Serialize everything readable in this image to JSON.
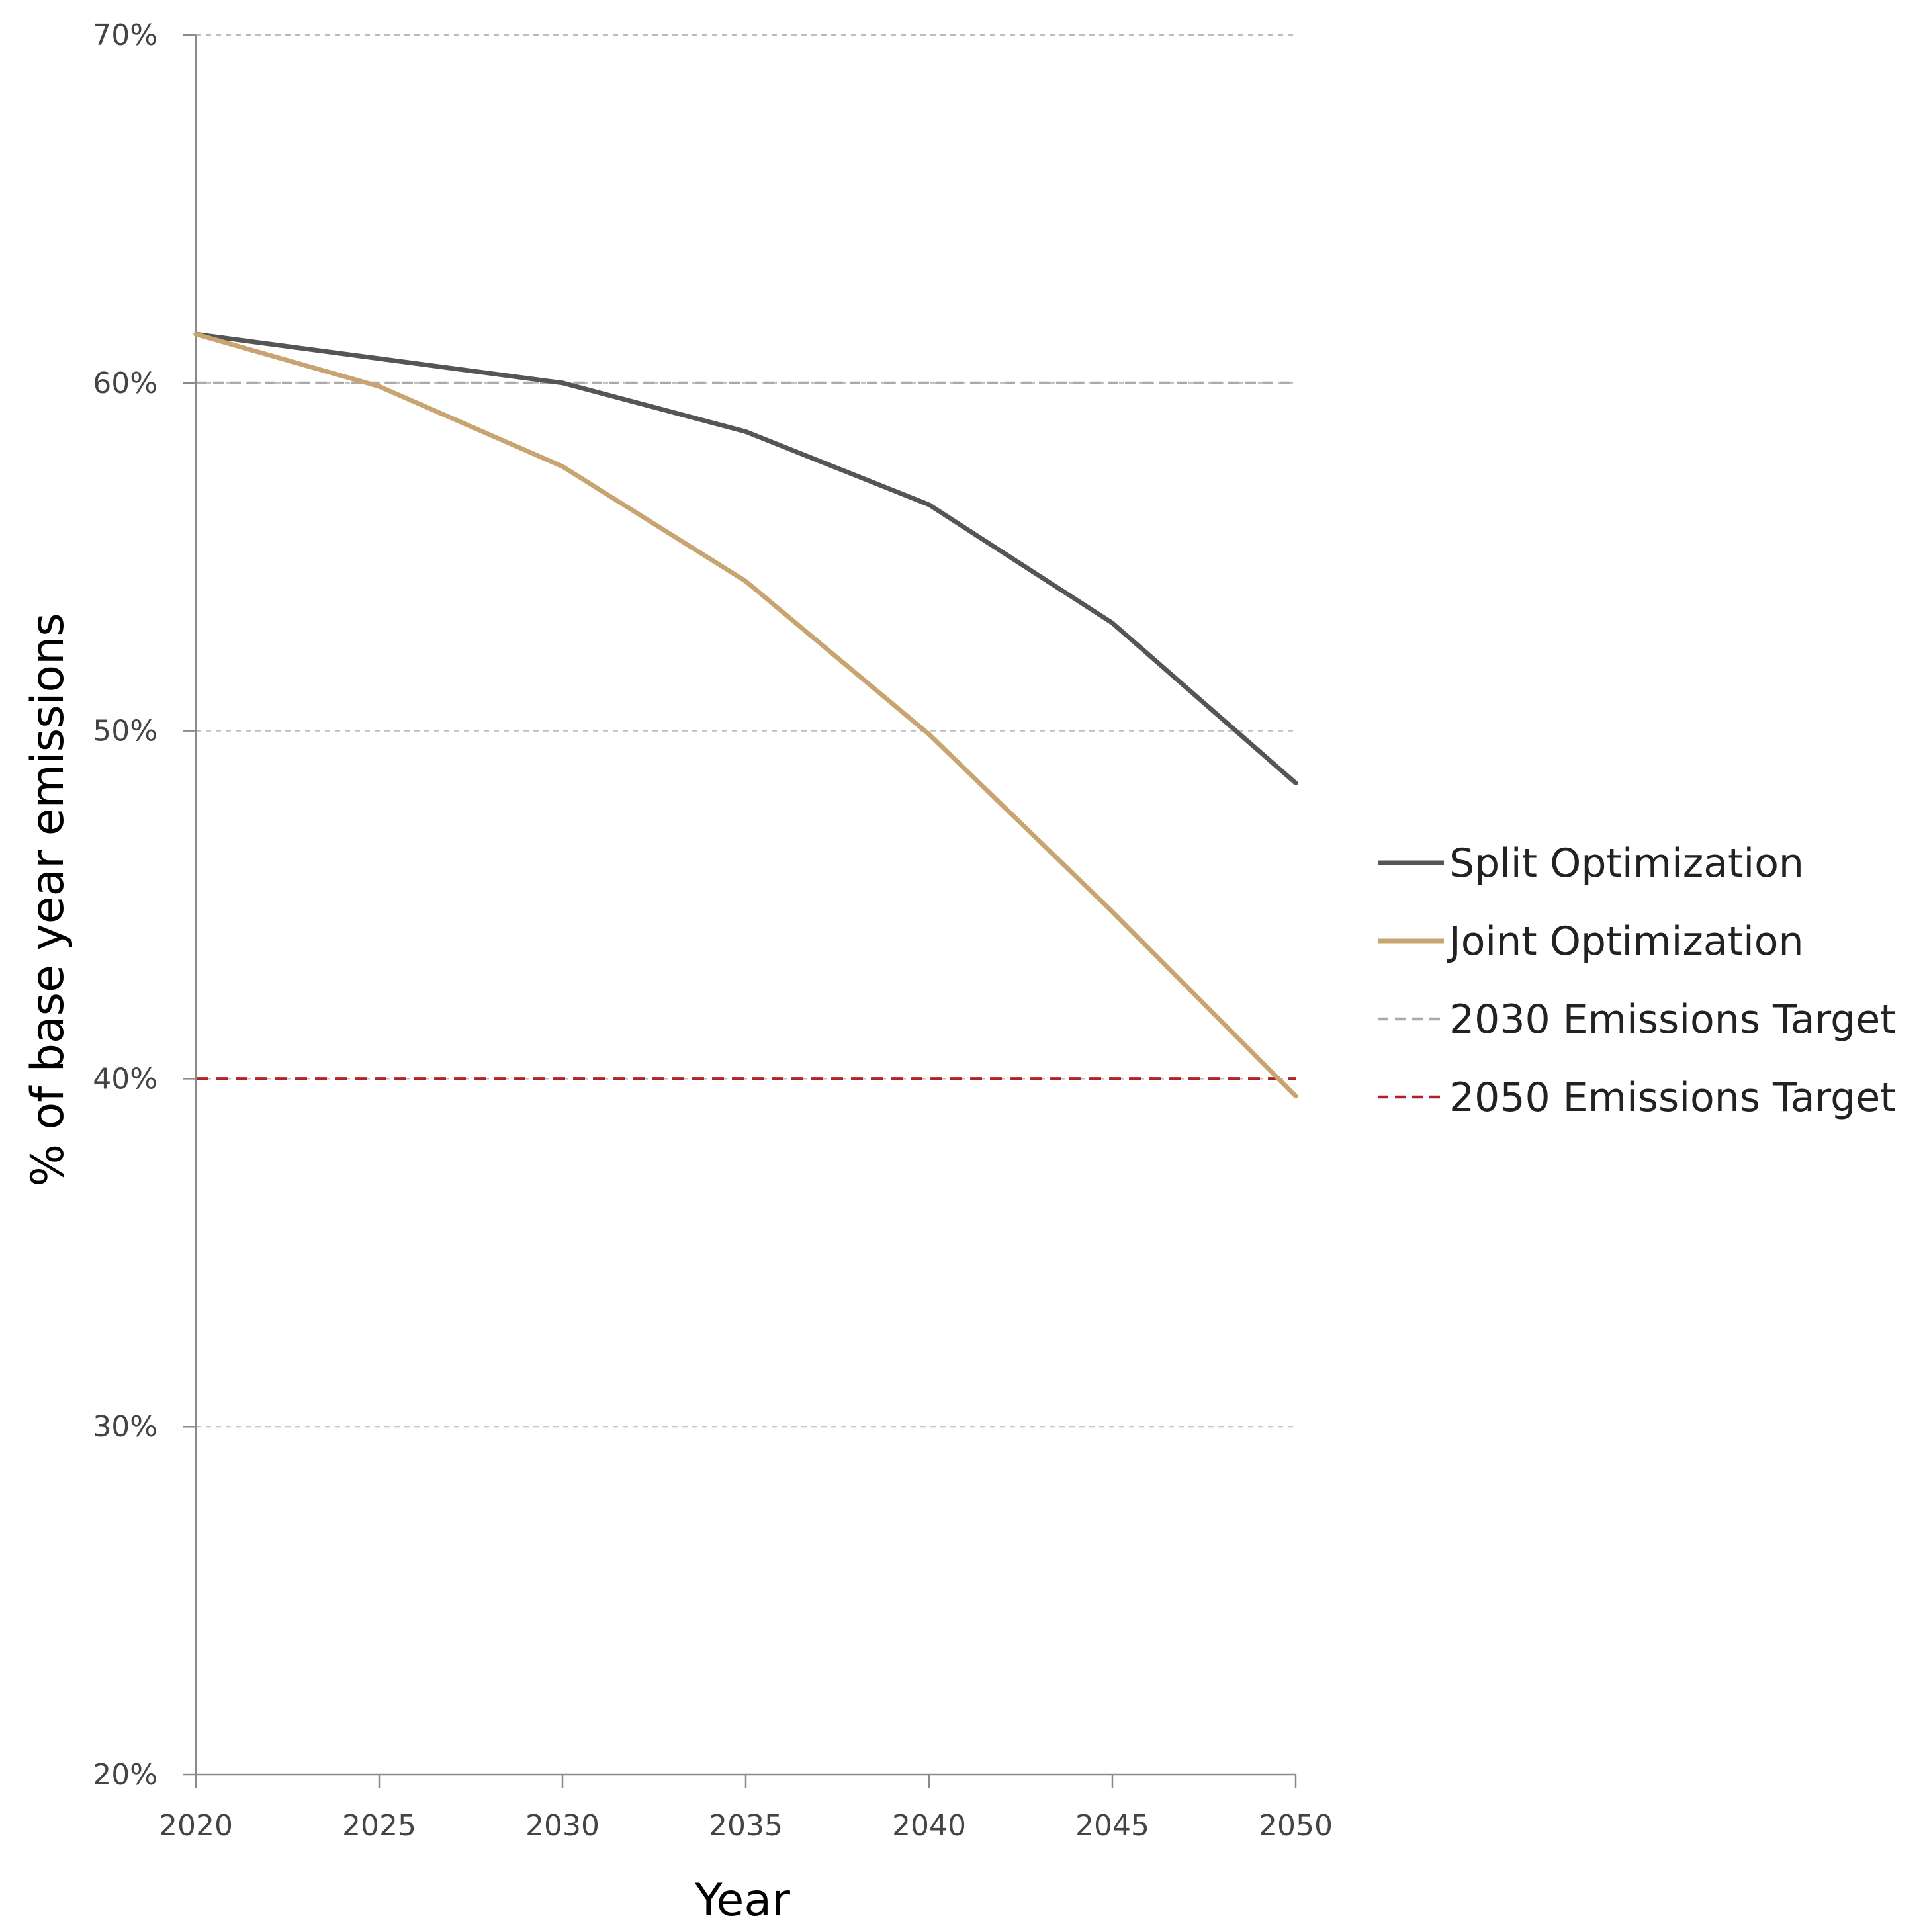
{
  "chart_data": {
    "type": "line",
    "title": "",
    "xlabel": "Year",
    "ylabel": "% of base year emissions",
    "x": [
      2020,
      2025,
      2030,
      2035,
      2040,
      2045,
      2050
    ],
    "x_tick_labels": [
      "2020",
      "2025",
      "2030",
      "2035",
      "2040",
      "2045",
      "2050"
    ],
    "y_ticks": [
      20,
      30,
      40,
      50,
      60,
      70
    ],
    "y_tick_labels": [
      "20%",
      "30%",
      "40%",
      "50%",
      "60%",
      "70%"
    ],
    "xlim": [
      2020,
      2050
    ],
    "ylim": [
      20,
      70
    ],
    "grid": "horizontal dashed",
    "legend_position": "right",
    "series": [
      {
        "name": "Split Optimization",
        "style": "solid",
        "color": "#555555",
        "values": [
          61.4,
          60.7,
          60.0,
          58.6,
          56.5,
          53.1,
          48.5
        ]
      },
      {
        "name": "Joint Optimization",
        "style": "solid",
        "color": "#c8a470",
        "values": [
          61.4,
          59.9,
          57.6,
          54.3,
          49.9,
          44.8,
          39.5
        ]
      }
    ],
    "reference_lines": [
      {
        "name": "2030 Emissions Target",
        "value": 60,
        "style": "dashed",
        "color": "#aaaaaa"
      },
      {
        "name": "2050 Emissions Target",
        "value": 40,
        "style": "dashed",
        "color": "#b22222"
      }
    ]
  }
}
